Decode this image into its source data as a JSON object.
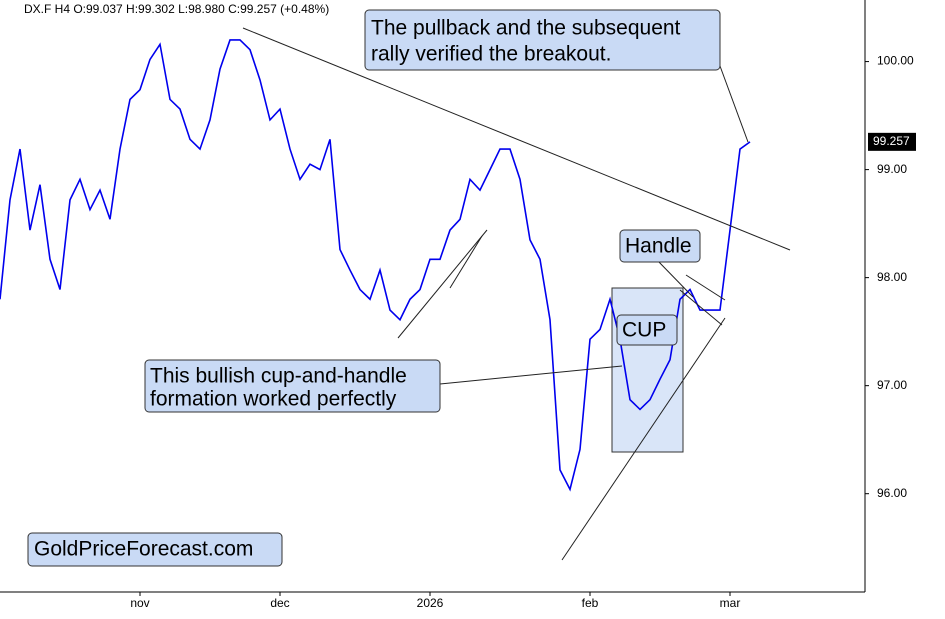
{
  "chart_data": {
    "type": "line",
    "header": "DX.F  H4  O:99.037  H:99.302  L:98.980  C:99.257  (+0.48%)",
    "categories": [
      null,
      null,
      null,
      null,
      null,
      null,
      null,
      null,
      null,
      null,
      null,
      null,
      null,
      null,
      "nov",
      null,
      null,
      null,
      null,
      null,
      null,
      null,
      null,
      null,
      null,
      null,
      null,
      null,
      "dec",
      null,
      null,
      null,
      null,
      null,
      null,
      null,
      null,
      null,
      null,
      null,
      null,
      null,
      null,
      "2026",
      null,
      null,
      null,
      null,
      null,
      null,
      null,
      null,
      null,
      null,
      null,
      null,
      null,
      null,
      null,
      "feb",
      null,
      null,
      null,
      null,
      null,
      null,
      null,
      null,
      null,
      null,
      null,
      null,
      null,
      "mar",
      null,
      null
    ],
    "series": [
      {
        "color": "#0000ee",
        "values": [
          97.8,
          98.72,
          99.19,
          98.44,
          98.86,
          98.17,
          97.89,
          98.72,
          98.91,
          98.63,
          98.81,
          98.54,
          99.19,
          99.65,
          99.74,
          100.02,
          100.16,
          99.65,
          99.56,
          99.28,
          99.19,
          99.46,
          99.93,
          100.2,
          100.2,
          100.11,
          99.83,
          99.46,
          99.56,
          99.19,
          98.91,
          99.05,
          99.0,
          99.28,
          98.26,
          98.07,
          97.89,
          97.8,
          98.07,
          97.7,
          97.61,
          97.8,
          97.89,
          98.17,
          98.17,
          98.44,
          98.54,
          98.91,
          98.81,
          99.0,
          99.19,
          99.19,
          98.91,
          98.35,
          98.17,
          97.61,
          96.22,
          96.04,
          96.41,
          97.43,
          97.52,
          97.8,
          97.43,
          96.87,
          96.78,
          96.87,
          97.06,
          97.24,
          97.8,
          97.89,
          97.7,
          97.7,
          97.7,
          98.44,
          99.19,
          99.257
        ]
      }
    ],
    "ylim": [
      95.09,
      100.57
    ],
    "yticks": [
      {
        "value": 96,
        "label": "96.00"
      },
      {
        "value": 97,
        "label": "97.00"
      },
      {
        "value": 98,
        "label": "98.00"
      },
      {
        "value": 99,
        "label": "99.00"
      },
      {
        "value": 100,
        "label": "100.00"
      }
    ],
    "last_price_label": "99.257",
    "annotations": [
      {
        "lines": [
          "The pullback and the subsequent",
          "rally verified the breakout."
        ]
      },
      {
        "lines": [
          "Handle"
        ]
      },
      {
        "lines": [
          "CUP"
        ]
      },
      {
        "lines": [
          "This bullish cup-and-handle",
          "formation worked perfectly"
        ]
      }
    ],
    "brand": "GoldPriceForecast.com"
  }
}
